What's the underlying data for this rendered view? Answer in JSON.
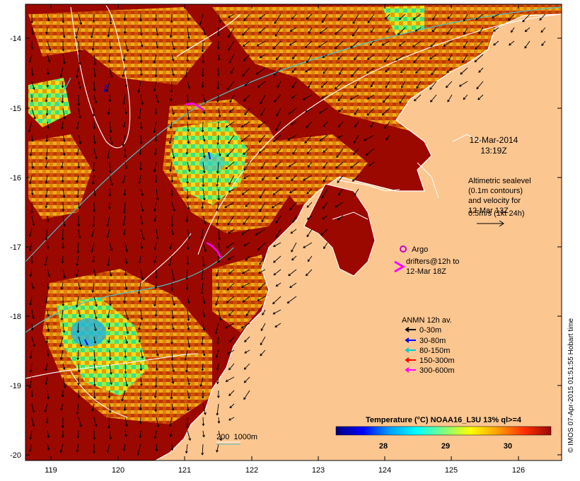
{
  "map": {
    "lat_labels": [
      "-14",
      "-15",
      "-16",
      "-17",
      "-18",
      "-19",
      "-20"
    ],
    "lon_labels": [
      "119",
      "120",
      "121",
      "122",
      "123",
      "124",
      "125",
      "126"
    ],
    "lat_range": [
      -20.1,
      -13.6
    ],
    "lon_range": [
      118.6,
      126.7
    ],
    "colors": {
      "land": "#fcc690",
      "warm_sst": "#9a0800",
      "contour": "#ffffff",
      "isobath": "#4fc1c4"
    }
  },
  "timestamp": {
    "date": "12-Mar-2014",
    "time": "13:19Z"
  },
  "altimetry_note": [
    "Altimetric sealevel",
    "(0.1m contours)",
    "and velocity for",
    "12-Mar 13Z",
    "0.5m/s (1kt 24h)"
  ],
  "argo": {
    "label": "Argo",
    "color": "#cc00cc"
  },
  "drifters": {
    "lines": [
      "drifters@12h to",
      "12-Mar 18Z"
    ],
    "color": "#ff00ff"
  },
  "anmn": {
    "title": "ANMN 12h av.",
    "items": [
      {
        "label": "0-30m",
        "color": "#000000"
      },
      {
        "label": "30-80m",
        "color": "#0000ff"
      },
      {
        "label": "80-150m",
        "color": "#00cccc"
      },
      {
        "label": "150-300m",
        "color": "#ff0000"
      },
      {
        "label": "300-600m",
        "color": "#ff00ff"
      }
    ]
  },
  "isobaths": {
    "label": "200  1000m"
  },
  "colorbar": {
    "title": "Temperature (°C) NOAA16_L3U 13% ql>=4",
    "ticks": [
      "28",
      "29",
      "30"
    ],
    "stops": [
      "#00007f",
      "#0000ff",
      "#00a0ff",
      "#00ffff",
      "#80ff80",
      "#ffff00",
      "#ffa000",
      "#ff3000",
      "#9a0800"
    ]
  },
  "credit": "© IMOS 07-Apr-2015 01:51:55 Hobart time"
}
